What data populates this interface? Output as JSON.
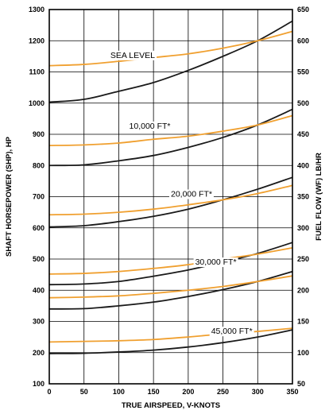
{
  "chart_data": {
    "type": "line",
    "xlabel": "TRUE AIRSPEED, V-KNOTS",
    "ylabel": "SHAFT HORSEPOWER (SHP), HP",
    "ylabel_right": "FUEL FLOW (WF) LB/HR",
    "xlim": [
      0,
      350
    ],
    "ylim": [
      100,
      1300
    ],
    "ylim_right": [
      50,
      650
    ],
    "xticks": [
      0,
      50,
      100,
      150,
      200,
      250,
      300,
      350
    ],
    "yticks": [
      100,
      200,
      300,
      400,
      500,
      600,
      700,
      800,
      900,
      1000,
      1100,
      1200,
      1300
    ],
    "yticks_right": [
      50,
      100,
      150,
      200,
      250,
      300,
      350,
      400,
      450,
      500,
      550,
      600,
      650
    ],
    "grid": true,
    "colors": {
      "shp": "#1a1a1a",
      "fuel_flow": "#f0a030"
    },
    "series": [
      {
        "label": "SEA LEVEL",
        "kind": "shp",
        "axis": "left",
        "x": [
          0,
          50,
          100,
          150,
          200,
          250,
          300,
          350
        ],
        "y": [
          1003,
          1012,
          1038,
          1066,
          1105,
          1150,
          1200,
          1263
        ]
      },
      {
        "label": "SEA LEVEL",
        "kind": "fuel_flow",
        "axis": "right",
        "x": [
          0,
          50,
          100,
          150,
          200,
          250,
          300,
          350
        ],
        "y": [
          560,
          562,
          567,
          573,
          579,
          588,
          600,
          615
        ]
      },
      {
        "label": "10,000 FT*",
        "kind": "shp",
        "axis": "left",
        "x": [
          0,
          50,
          100,
          150,
          200,
          250,
          300,
          350
        ],
        "y": [
          800,
          802,
          815,
          832,
          858,
          890,
          930,
          980
        ]
      },
      {
        "label": "10,000 FT*",
        "kind": "fuel_flow",
        "axis": "right",
        "x": [
          0,
          50,
          100,
          150,
          200,
          250,
          300,
          350
        ],
        "y": [
          432,
          433,
          436,
          442,
          447,
          455,
          465,
          480
        ]
      },
      {
        "label": "20,000 FT*",
        "kind": "shp",
        "axis": "left",
        "x": [
          0,
          50,
          100,
          150,
          200,
          250,
          300,
          350
        ],
        "y": [
          603,
          607,
          620,
          637,
          660,
          690,
          724,
          762
        ]
      },
      {
        "label": "20,000 FT*",
        "kind": "fuel_flow",
        "axis": "right",
        "x": [
          0,
          50,
          100,
          150,
          200,
          250,
          300,
          350
        ],
        "y": [
          321,
          322,
          325,
          330,
          337,
          345,
          355,
          368
        ]
      },
      {
        "label": "30,000 FT*",
        "kind": "shp",
        "axis": "left",
        "x": [
          0,
          50,
          100,
          150,
          200,
          250,
          300,
          350
        ],
        "y": [
          418,
          420,
          428,
          445,
          465,
          490,
          518,
          553
        ]
      },
      {
        "label": "30,000 FT*",
        "kind": "shp",
        "axis": "left",
        "x": [
          0,
          50,
          100,
          150,
          200,
          250,
          300,
          350
        ],
        "y": [
          340,
          341,
          350,
          362,
          380,
          402,
          428,
          460
        ]
      },
      {
        "label": "30,000 FT*",
        "kind": "fuel_flow",
        "axis": "right",
        "x": [
          0,
          50,
          100,
          150,
          200,
          250,
          300,
          350
        ],
        "y": [
          226,
          227,
          230,
          235,
          241,
          250,
          258,
          268
        ]
      },
      {
        "label": "30,000 FT*",
        "kind": "fuel_flow",
        "axis": "right",
        "x": [
          0,
          50,
          100,
          150,
          200,
          250,
          300,
          350
        ],
        "y": [
          188,
          189,
          191,
          195,
          200,
          206,
          214,
          223
        ]
      },
      {
        "label": "45,000 FT*",
        "kind": "shp",
        "axis": "left",
        "x": [
          0,
          50,
          100,
          150,
          200,
          250,
          300,
          350
        ],
        "y": [
          197,
          198,
          202,
          208,
          218,
          232,
          250,
          273
        ]
      },
      {
        "label": "45,000 FT*",
        "kind": "fuel_flow",
        "axis": "right",
        "x": [
          0,
          50,
          100,
          150,
          200,
          250,
          300,
          350
        ],
        "y": [
          117,
          118,
          119,
          121,
          125,
          130,
          134,
          139
        ]
      }
    ],
    "annotations": [
      {
        "text": "SEA LEVEL",
        "x": 88,
        "y": 1145
      },
      {
        "text": "10,000 FT*",
        "x": 115,
        "y": 918
      },
      {
        "text": "20,000 FT*",
        "x": 175,
        "y": 700
      },
      {
        "text": "30,000 FT*",
        "x": 210,
        "y": 482
      },
      {
        "text": "45,000 FT*",
        "x": 233,
        "y": 260
      }
    ]
  }
}
